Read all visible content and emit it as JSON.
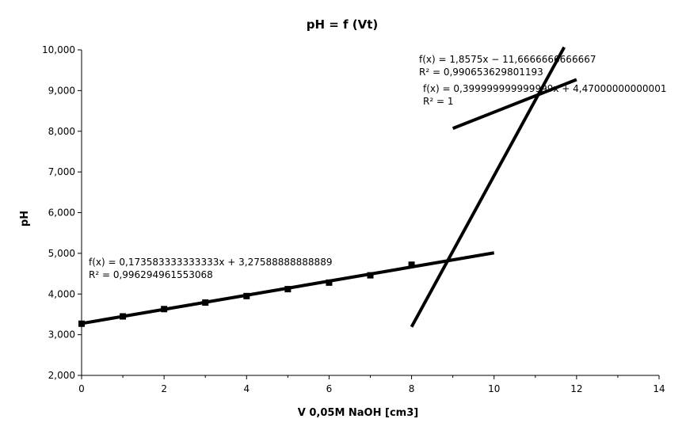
{
  "chart_data": {
    "type": "scatter",
    "title": "pH = f (Vt)",
    "xlabel": "V 0,05M NaOH [cm3]",
    "ylabel": "pH",
    "xlim": [
      0,
      14
    ],
    "ylim": [
      2,
      10
    ],
    "x_ticks": [
      "0",
      "2",
      "4",
      "6",
      "8",
      "10",
      "12",
      "14"
    ],
    "y_ticks": [
      "2,000",
      "3,000",
      "4,000",
      "5,000",
      "6,000",
      "7,000",
      "8,000",
      "9,000",
      "10,000"
    ],
    "grid": false,
    "series": [
      {
        "x": [
          0,
          1,
          2,
          3,
          4,
          5,
          6,
          7,
          8
        ],
        "y": [
          3.27,
          3.45,
          3.63,
          3.79,
          3.95,
          4.12,
          4.28,
          4.46,
          4.72
        ]
      }
    ],
    "trendlines": [
      {
        "x_range": [
          0,
          10
        ],
        "slope": 0.173583333333333,
        "intercept": 3.27588888888889,
        "equation": "f(x) = 0,173583333333333x + 3,27588888888889",
        "r2": "R² = 0,996294961553068"
      },
      {
        "x_range": [
          8,
          11.7
        ],
        "slope": 1.8575,
        "intercept": -11.6666666666667,
        "equation": "f(x) = 1,8575x − 11,6666666666667",
        "r2": "R² = 0,990653629801193"
      },
      {
        "x_range": [
          9,
          12
        ],
        "slope": 0.399999999999999,
        "intercept": 4.47000000000001,
        "equation": "f(x) = 0,399999999999999x + 4,47000000000001",
        "r2": "R² = 1"
      }
    ]
  }
}
